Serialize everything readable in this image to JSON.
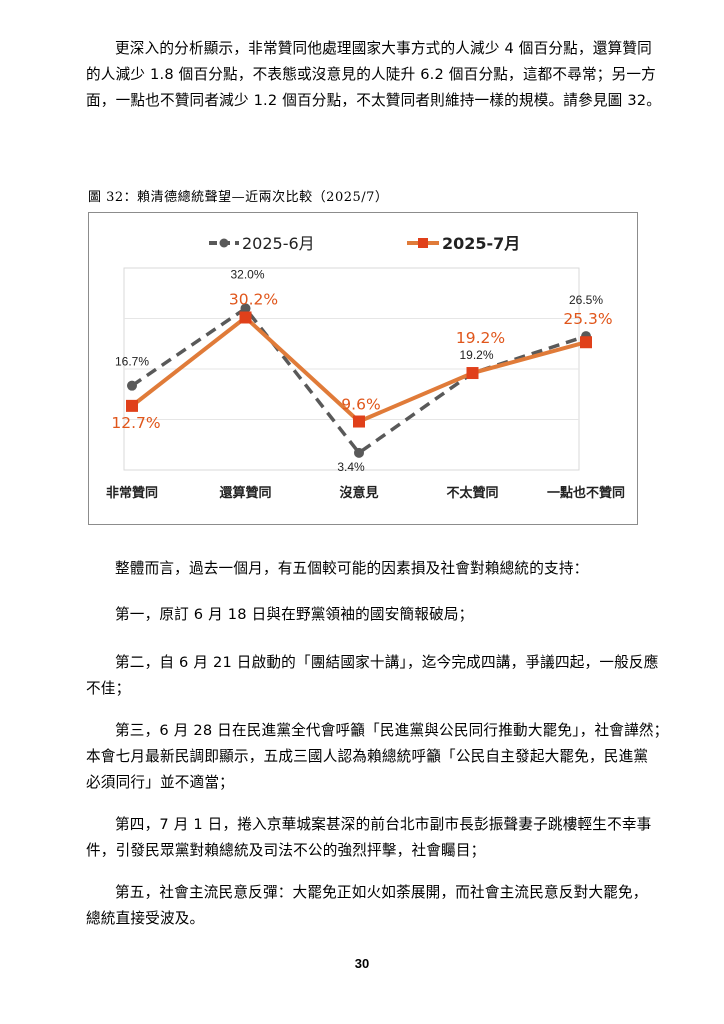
{
  "intro_paragraph": {
    "lines": [
      "更深入的分析顯示，非常贊同他處理國家大事方式的人減少 4 個百分點，還算贊同",
      "的人減少 1.8 個百分點，不表態或沒意見的人陡升 6.2 個百分點，這都不尋常；另一方",
      "面，一點也不贊同者減少 1.2 個百分點，不太贊同者則維持一樣的規模。請參見圖 32。"
    ]
  },
  "figure_caption": "圖 32：賴清德總統聲望—近兩次比較（2025/7）",
  "chart_data": {
    "type": "line",
    "categories": [
      "非常贊同",
      "還算贊同",
      "沒意見",
      "不太贊同",
      "一點也不贊同"
    ],
    "series": [
      {
        "name": "2025-6月",
        "values": [
          16.7,
          32.0,
          3.4,
          19.2,
          26.5
        ],
        "labels": [
          "16.7%",
          "32.0%",
          "3.4%",
          "19.2%",
          "26.5%"
        ],
        "color": "#595959",
        "style": "dashed",
        "marker": "circle"
      },
      {
        "name": "2025-7月",
        "values": [
          12.7,
          30.2,
          9.6,
          19.2,
          25.3
        ],
        "labels": [
          "12.7%",
          "30.2%",
          "9.6%",
          "19.2%",
          "25.3%"
        ],
        "color": "#e07b39",
        "label_color": "#e0561b",
        "style": "solid",
        "marker": "square"
      }
    ],
    "title": "",
    "xlabel": "",
    "ylabel": "",
    "ylim": [
      0,
      40
    ],
    "grid": true,
    "legend": "top-center"
  },
  "paragraphs": [
    {
      "lines": [
        "整體而言，過去一個月，有五個較可能的因素損及社會對賴總統的支持："
      ]
    },
    {
      "lines": [
        "第一，原訂 6 月 18 日與在野黨領袖的國安簡報破局；"
      ]
    },
    {
      "lines": [
        "第二，自 6 月 21 日啟動的「團結國家十講」，迄今完成四講，爭議四起，一般反應",
        "不佳；"
      ]
    },
    {
      "lines": [
        "第三，6 月 28 日在民進黨全代會呼籲「民進黨與公民同行推動大罷免」，社會譁然；",
        "本會七月最新民調即顯示，五成三國人認為賴總統呼籲「公民自主發起大罷免，民進黨",
        "必須同行」並不適當；"
      ]
    },
    {
      "lines": [
        "第四，7 月 1 日，捲入京華城案甚深的前台北市副市長彭振聲妻子跳樓輕生不幸事",
        "件，引發民眾黨對賴總統及司法不公的強烈抨擊，社會矚目；"
      ]
    },
    {
      "lines": [
        "第五，社會主流民意反彈：大罷免正如火如荼展開，而社會主流民意反對大罷免，",
        "總統直接受波及。"
      ]
    }
  ],
  "page_number": "30"
}
